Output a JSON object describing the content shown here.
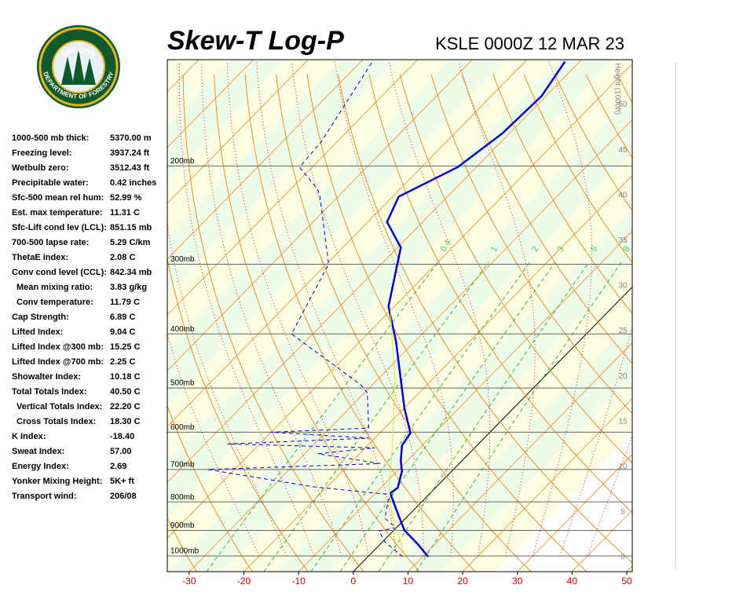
{
  "logo": {
    "top": "OREGON",
    "bottom": "DEPARTMENT OF FORESTRY"
  },
  "indices": [
    {
      "label": "1000-500 mb thick:",
      "value": "5370.00 m"
    },
    {
      "label": "Freezing level:",
      "value": "3937.24 ft"
    },
    {
      "label": "Wetbulb zero:",
      "value": "3512.43 ft"
    },
    {
      "label": "Precipitable water:",
      "value": "0.42 inches"
    },
    {
      "label": "Sfc-500 mean rel hum:",
      "value": "52.99 %"
    },
    {
      "label": "Est. max temperature:",
      "value": "11.31 C"
    },
    {
      "label": "Sfc-Lift cond lev (LCL):",
      "value": "851.15 mb"
    },
    {
      "label": "700-500 lapse rate:",
      "value": "5.29 C/km"
    },
    {
      "label": "ThetaE index:",
      "value": "2.08 C"
    },
    {
      "label": "Conv cond level (CCL):",
      "value": "842.34 mb"
    },
    {
      "label": "Mean mixing ratio:",
      "value": "3.83 g/kg",
      "indent": true
    },
    {
      "label": "Conv temperature:",
      "value": "11.79 C",
      "indent": true
    },
    {
      "label": "Cap Strength:",
      "value": "6.89 C"
    },
    {
      "label": "Lifted Index:",
      "value": "9.04 C"
    },
    {
      "label": "Lifted Index @300 mb:",
      "value": "15.25 C"
    },
    {
      "label": "Lifted Index @700 mb:",
      "value": "2.25 C"
    },
    {
      "label": "Showalter Index:",
      "value": "10.18 C"
    },
    {
      "label": "Total Totals Index:",
      "value": "40.50 C"
    },
    {
      "label": "Vertical Totals Index:",
      "value": "22.20 C",
      "indent": true
    },
    {
      "label": "Cross Totals Index:",
      "value": "18.30 C",
      "indent": true
    },
    {
      "label": "K Index:",
      "value": "-18.40"
    },
    {
      "label": "Sweat Index:",
      "value": "57.00"
    },
    {
      "label": "Energy Index:",
      "value": "2.69"
    },
    {
      "label": "Yonker Mixing Height:",
      "value": "5K+ ft"
    },
    {
      "label": "Transport wind:",
      "value": "206/08"
    }
  ],
  "chart_data": {
    "type": "skewt",
    "title": "Skew-T Log-P",
    "subtitle": "KSLE 0000Z 12 MAR 23",
    "xlim": [
      -34,
      51
    ],
    "xticks": [
      -30,
      -20,
      -10,
      0,
      10,
      20,
      30,
      40,
      50
    ],
    "ylim": [
      1067,
      129
    ],
    "log_y": true,
    "yticks": [
      {
        "value": 1000,
        "label": "1000mb"
      },
      {
        "value": 900,
        "label": "900mb"
      },
      {
        "value": 800,
        "label": "800mb"
      },
      {
        "value": 700,
        "label": "700mb"
      },
      {
        "value": 600,
        "label": "600mb"
      },
      {
        "value": 500,
        "label": "500mb"
      },
      {
        "value": 400,
        "label": "400mb"
      },
      {
        "value": 300,
        "label": "300mb"
      },
      {
        "value": 200,
        "label": "200mb"
      }
    ],
    "y2label": "Height (1000ft)",
    "y2lim": [
      -1.6,
      55
    ],
    "y2ticks": [
      0,
      5,
      10,
      15,
      20,
      25,
      30,
      35,
      40,
      45,
      50
    ],
    "mixing_ratios": [
      0.4,
      1,
      2,
      3,
      5,
      8
    ],
    "series": [
      {
        "color": "#0000cc",
        "style": "solid",
        "pressure": [
          1003,
          953,
          899,
          856,
          772,
          755,
          705,
          675,
          634,
          602,
          544,
          413,
          357,
          280,
          252,
          227,
          201,
          175,
          150,
          130
        ],
        "values": [
          11.0,
          6.9,
          1.9,
          -1.1,
          -7.3,
          -6.9,
          -9.1,
          -11.2,
          -13.7,
          -14.4,
          -19.9,
          -33.4,
          -41.1,
          -49.4,
          -56.5,
          -58.9,
          -53.4,
          -51.3,
          -50.8,
          -52.7
        ]
      },
      {
        "color": "#0000cc",
        "style": "dashed",
        "pressure": [
          1003,
          943,
          902,
          890,
          856,
          792,
          777,
          752,
          700,
          683,
          656,
          640,
          630,
          615,
          600,
          590,
          510,
          494,
          400,
          300,
          227,
          220,
          201,
          181,
          130
        ],
        "values": [
          6.3,
          0.4,
          -2.6,
          0.0,
          -3.8,
          -6.5,
          -6.6,
          -22.4,
          -44.9,
          -14.4,
          -27.6,
          -18.2,
          -45.9,
          -21.0,
          -40.1,
          -22.9,
          -29.5,
          -32.0,
          -53.9,
          -59.6,
          -73.3,
          -75.1,
          -82.3,
          -82.9,
          -87.9
        ]
      },
      {
        "color": "#e0e040",
        "style": "thin",
        "pressure": [
          1003,
          856,
          752,
          619,
          478,
          357
        ],
        "values": [
          6.8,
          -2.4,
          -8.7,
          -16.4,
          -27.3,
          -40.8
        ]
      }
    ]
  }
}
